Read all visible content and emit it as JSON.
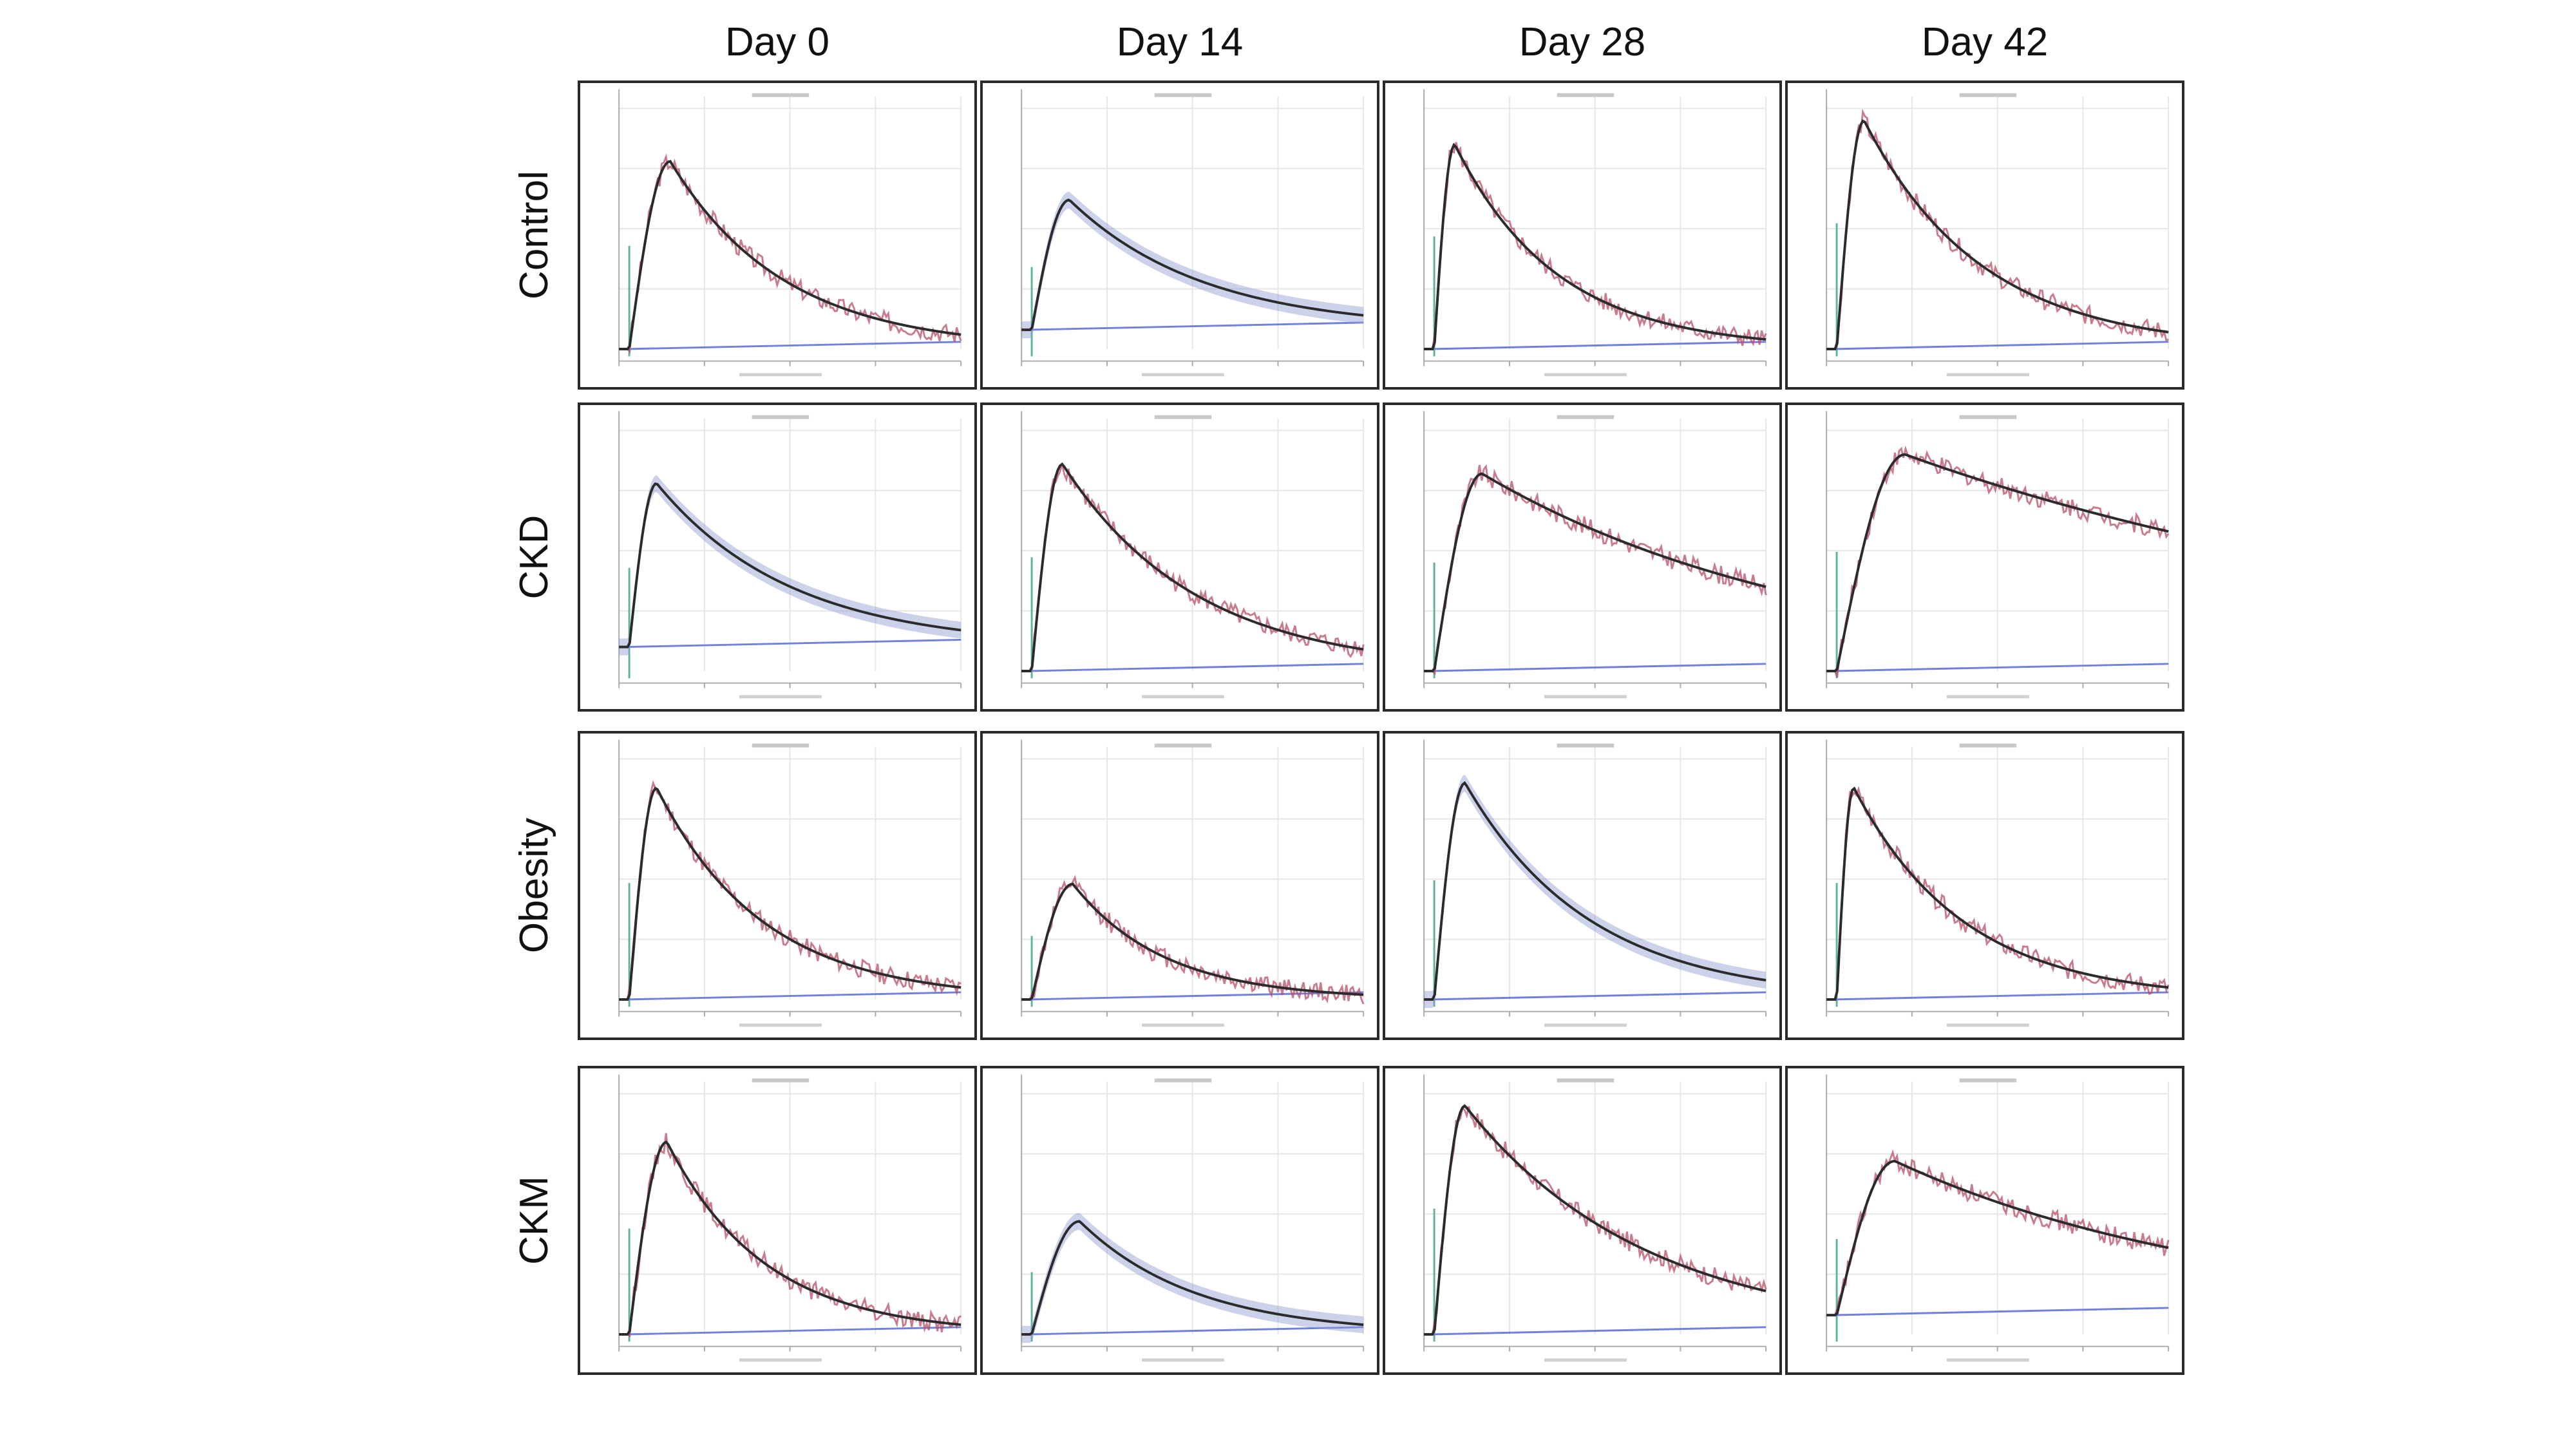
{
  "figure": {
    "column_labels": [
      "Day 0",
      "Day 14",
      "Day 28",
      "Day 42"
    ],
    "row_labels": [
      "Control",
      "CKD",
      "Obesity",
      "CKM"
    ]
  },
  "colors": {
    "fit_line": "#2b2b2b",
    "data_red": "#b8506a",
    "ci_band": "#8c9bd0",
    "baseline": "#7080e0",
    "injection_line": "#5fb39c",
    "grid": "#e6e6e6",
    "axis": "#aaaaaa"
  },
  "chart_data": [
    {
      "row": "Control",
      "column": "Day 0",
      "type": "line",
      "baseline": 0.0,
      "peak_time": 0.15,
      "peak": 0.78,
      "end_value": 0.06,
      "band": "red"
    },
    {
      "row": "Control",
      "column": "Day 14",
      "type": "line",
      "baseline": 0.08,
      "peak_time": 0.14,
      "peak": 0.62,
      "end_value": 0.14,
      "band": "blue"
    },
    {
      "row": "Control",
      "column": "Day 28",
      "type": "line",
      "baseline": 0.0,
      "peak_time": 0.09,
      "peak": 0.85,
      "end_value": 0.04,
      "band": "red"
    },
    {
      "row": "Control",
      "column": "Day 42",
      "type": "line",
      "baseline": 0.0,
      "peak_time": 0.11,
      "peak": 0.95,
      "end_value": 0.07,
      "band": "red"
    },
    {
      "row": "CKD",
      "column": "Day 0",
      "type": "line",
      "baseline": 0.1,
      "peak_time": 0.11,
      "peak": 0.78,
      "end_value": 0.17,
      "band": "blue"
    },
    {
      "row": "CKD",
      "column": "Day 14",
      "type": "line",
      "baseline": 0.0,
      "peak_time": 0.12,
      "peak": 0.86,
      "end_value": 0.09,
      "band": "red"
    },
    {
      "row": "CKD",
      "column": "Day 28",
      "type": "line",
      "baseline": 0.0,
      "peak_time": 0.17,
      "peak": 0.82,
      "end_value": 0.35,
      "band": "red"
    },
    {
      "row": "CKD",
      "column": "Day 42",
      "type": "line",
      "baseline": 0.0,
      "peak_time": 0.23,
      "peak": 0.9,
      "end_value": 0.58,
      "band": "red"
    },
    {
      "row": "Obesity",
      "column": "Day 0",
      "type": "line",
      "baseline": 0.0,
      "peak_time": 0.11,
      "peak": 0.88,
      "end_value": 0.05,
      "band": "red"
    },
    {
      "row": "Obesity",
      "column": "Day 14",
      "type": "line",
      "baseline": 0.0,
      "peak_time": 0.15,
      "peak": 0.48,
      "end_value": 0.02,
      "band": "red"
    },
    {
      "row": "Obesity",
      "column": "Day 28",
      "type": "line",
      "baseline": 0.0,
      "peak_time": 0.12,
      "peak": 0.9,
      "end_value": 0.08,
      "band": "blue"
    },
    {
      "row": "Obesity",
      "column": "Day 42",
      "type": "line",
      "baseline": 0.0,
      "peak_time": 0.08,
      "peak": 0.88,
      "end_value": 0.05,
      "band": "red"
    },
    {
      "row": "CKM",
      "column": "Day 0",
      "type": "line",
      "baseline": 0.0,
      "peak_time": 0.14,
      "peak": 0.8,
      "end_value": 0.04,
      "band": "red"
    },
    {
      "row": "CKM",
      "column": "Day 14",
      "type": "line",
      "baseline": 0.0,
      "peak_time": 0.17,
      "peak": 0.47,
      "end_value": 0.04,
      "band": "blue"
    },
    {
      "row": "CKM",
      "column": "Day 28",
      "type": "line",
      "baseline": 0.0,
      "peak_time": 0.12,
      "peak": 0.95,
      "end_value": 0.18,
      "band": "red"
    },
    {
      "row": "CKM",
      "column": "Day 42",
      "type": "line",
      "baseline": 0.08,
      "peak_time": 0.2,
      "peak": 0.72,
      "end_value": 0.36,
      "band": "red"
    }
  ]
}
